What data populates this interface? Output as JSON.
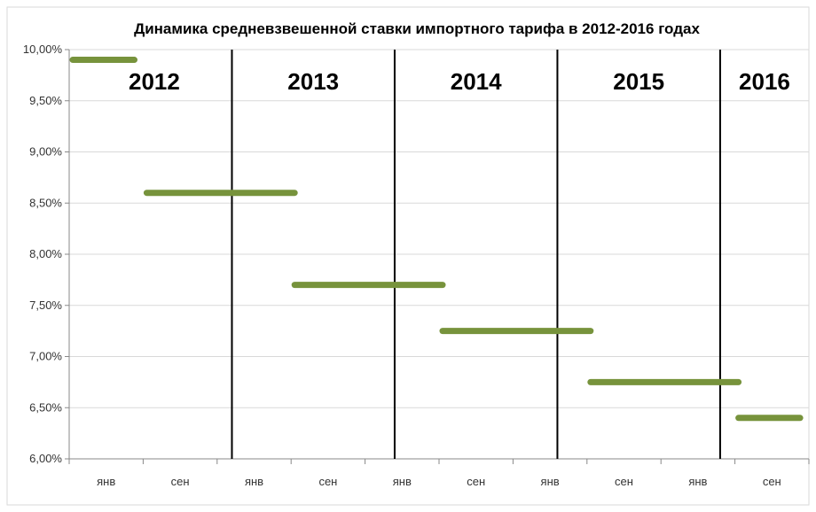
{
  "chart_data": {
    "type": "line",
    "title": "Динамика средневзвешенной ставки импортного тарифа в 2012-2016 годах",
    "xlabel": "",
    "ylabel": "",
    "ylim": [
      6.0,
      10.0
    ],
    "yticks": [
      "6,00%",
      "6,50%",
      "7,00%",
      "7,50%",
      "8,00%",
      "8,50%",
      "9,00%",
      "9,50%",
      "10,00%"
    ],
    "x_ticks": [
      "янв",
      "сен",
      "янв",
      "сен",
      "янв",
      "сен",
      "янв",
      "сен",
      "янв",
      "сен"
    ],
    "year_labels": [
      "2012",
      "2013",
      "2014",
      "2015",
      "2016"
    ],
    "segments": [
      {
        "start": 0.0,
        "end": 1.0,
        "value": 9.9
      },
      {
        "start": 1.2,
        "end": 3.6,
        "value": 8.6
      },
      {
        "start": 3.6,
        "end": 6.0,
        "value": 7.7
      },
      {
        "start": 6.0,
        "end": 8.4,
        "value": 7.25
      },
      {
        "start": 8.4,
        "end": 10.8,
        "value": 6.75
      },
      {
        "start": 10.8,
        "end": 11.8,
        "value": 6.4
      }
    ],
    "segment_color": "#77933c",
    "grid": true
  }
}
